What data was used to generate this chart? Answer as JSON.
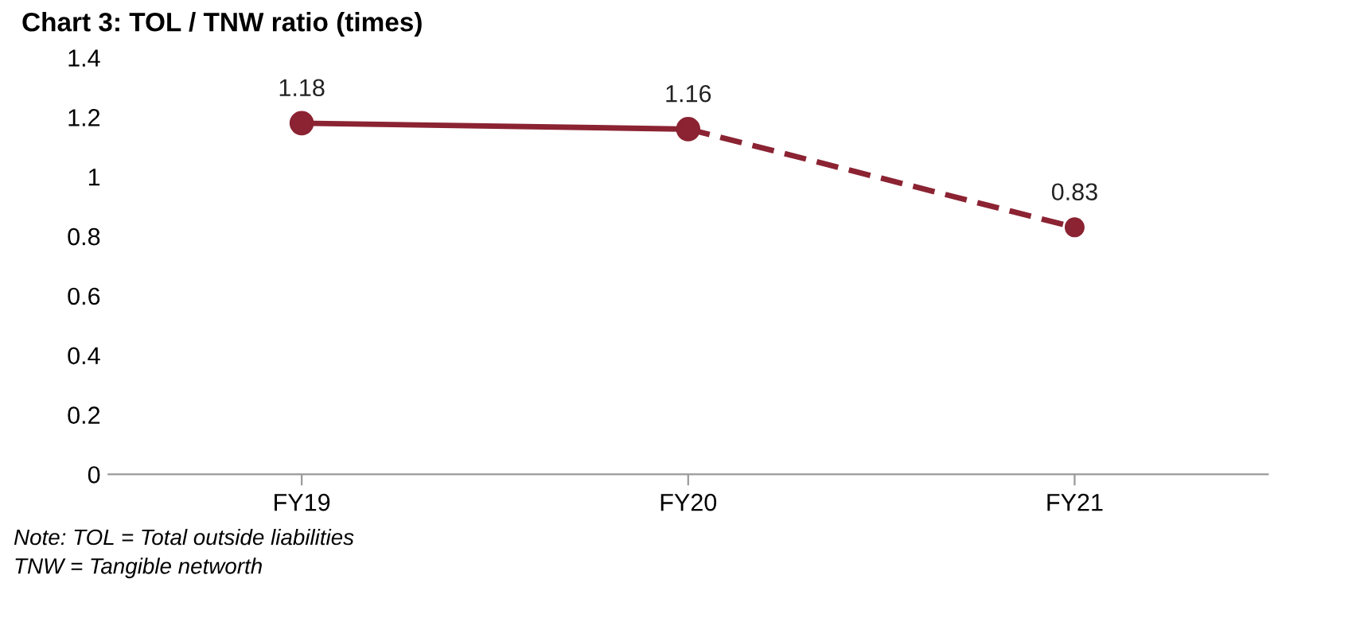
{
  "chart_data": {
    "type": "line",
    "title": "Chart 3: TOL / TNW ratio (times)",
    "categories": [
      "FY19",
      "FY20",
      "FY21"
    ],
    "series": [
      {
        "color": "#8b2332",
        "values": [
          1.18,
          1.16,
          null
        ],
        "line_style": "solid",
        "value_labels": [
          "1.18",
          null,
          null
        ]
      },
      {
        "color": "#8b2332",
        "values": [
          null,
          1.16,
          0.83
        ],
        "line_style": "dashed",
        "value_labels": [
          null,
          "1.16",
          "0.83"
        ]
      }
    ],
    "ylim": [
      0,
      1.4
    ],
    "yticks": [
      0,
      0.2,
      0.4,
      0.6,
      0.8,
      1,
      1.2,
      1.4
    ],
    "grid": false,
    "legend": false,
    "marker": "circle",
    "annotations": [
      "Note: TOL = Total outside liabilities",
      "TNW = Tangible networth"
    ]
  }
}
